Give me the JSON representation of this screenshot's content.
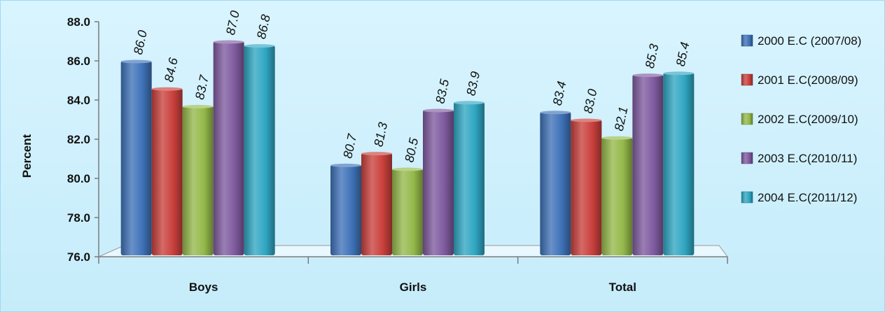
{
  "chart_data": {
    "type": "bar",
    "title": "",
    "xlabel": "",
    "ylabel": "Percent",
    "ylim": [
      76.0,
      88.0
    ],
    "yticks": [
      "76.0",
      "78.0",
      "80.0",
      "82.0",
      "84.0",
      "86.0",
      "88.0"
    ],
    "categories": [
      "Boys",
      "Girls",
      "Total"
    ],
    "legend_position": "right",
    "grid": false,
    "series": [
      {
        "name": "2000 E.C (2007/08)",
        "color": "#3f72b8",
        "values": [
          86.0,
          80.7,
          83.4
        ]
      },
      {
        "name": "2001 E.C(2008/09)",
        "color": "#c9403c",
        "values": [
          84.6,
          81.3,
          83.0
        ]
      },
      {
        "name": "2002 E.C(2009/10)",
        "color": "#95b94a",
        "values": [
          83.7,
          80.5,
          82.1
        ]
      },
      {
        "name": "2003 E.C(2010/11)",
        "color": "#7f5a9f",
        "values": [
          87.0,
          83.5,
          85.3
        ]
      },
      {
        "name": "2004 E.C(2011/12)",
        "color": "#2fa6c2",
        "values": [
          86.8,
          83.9,
          85.4
        ]
      }
    ]
  }
}
